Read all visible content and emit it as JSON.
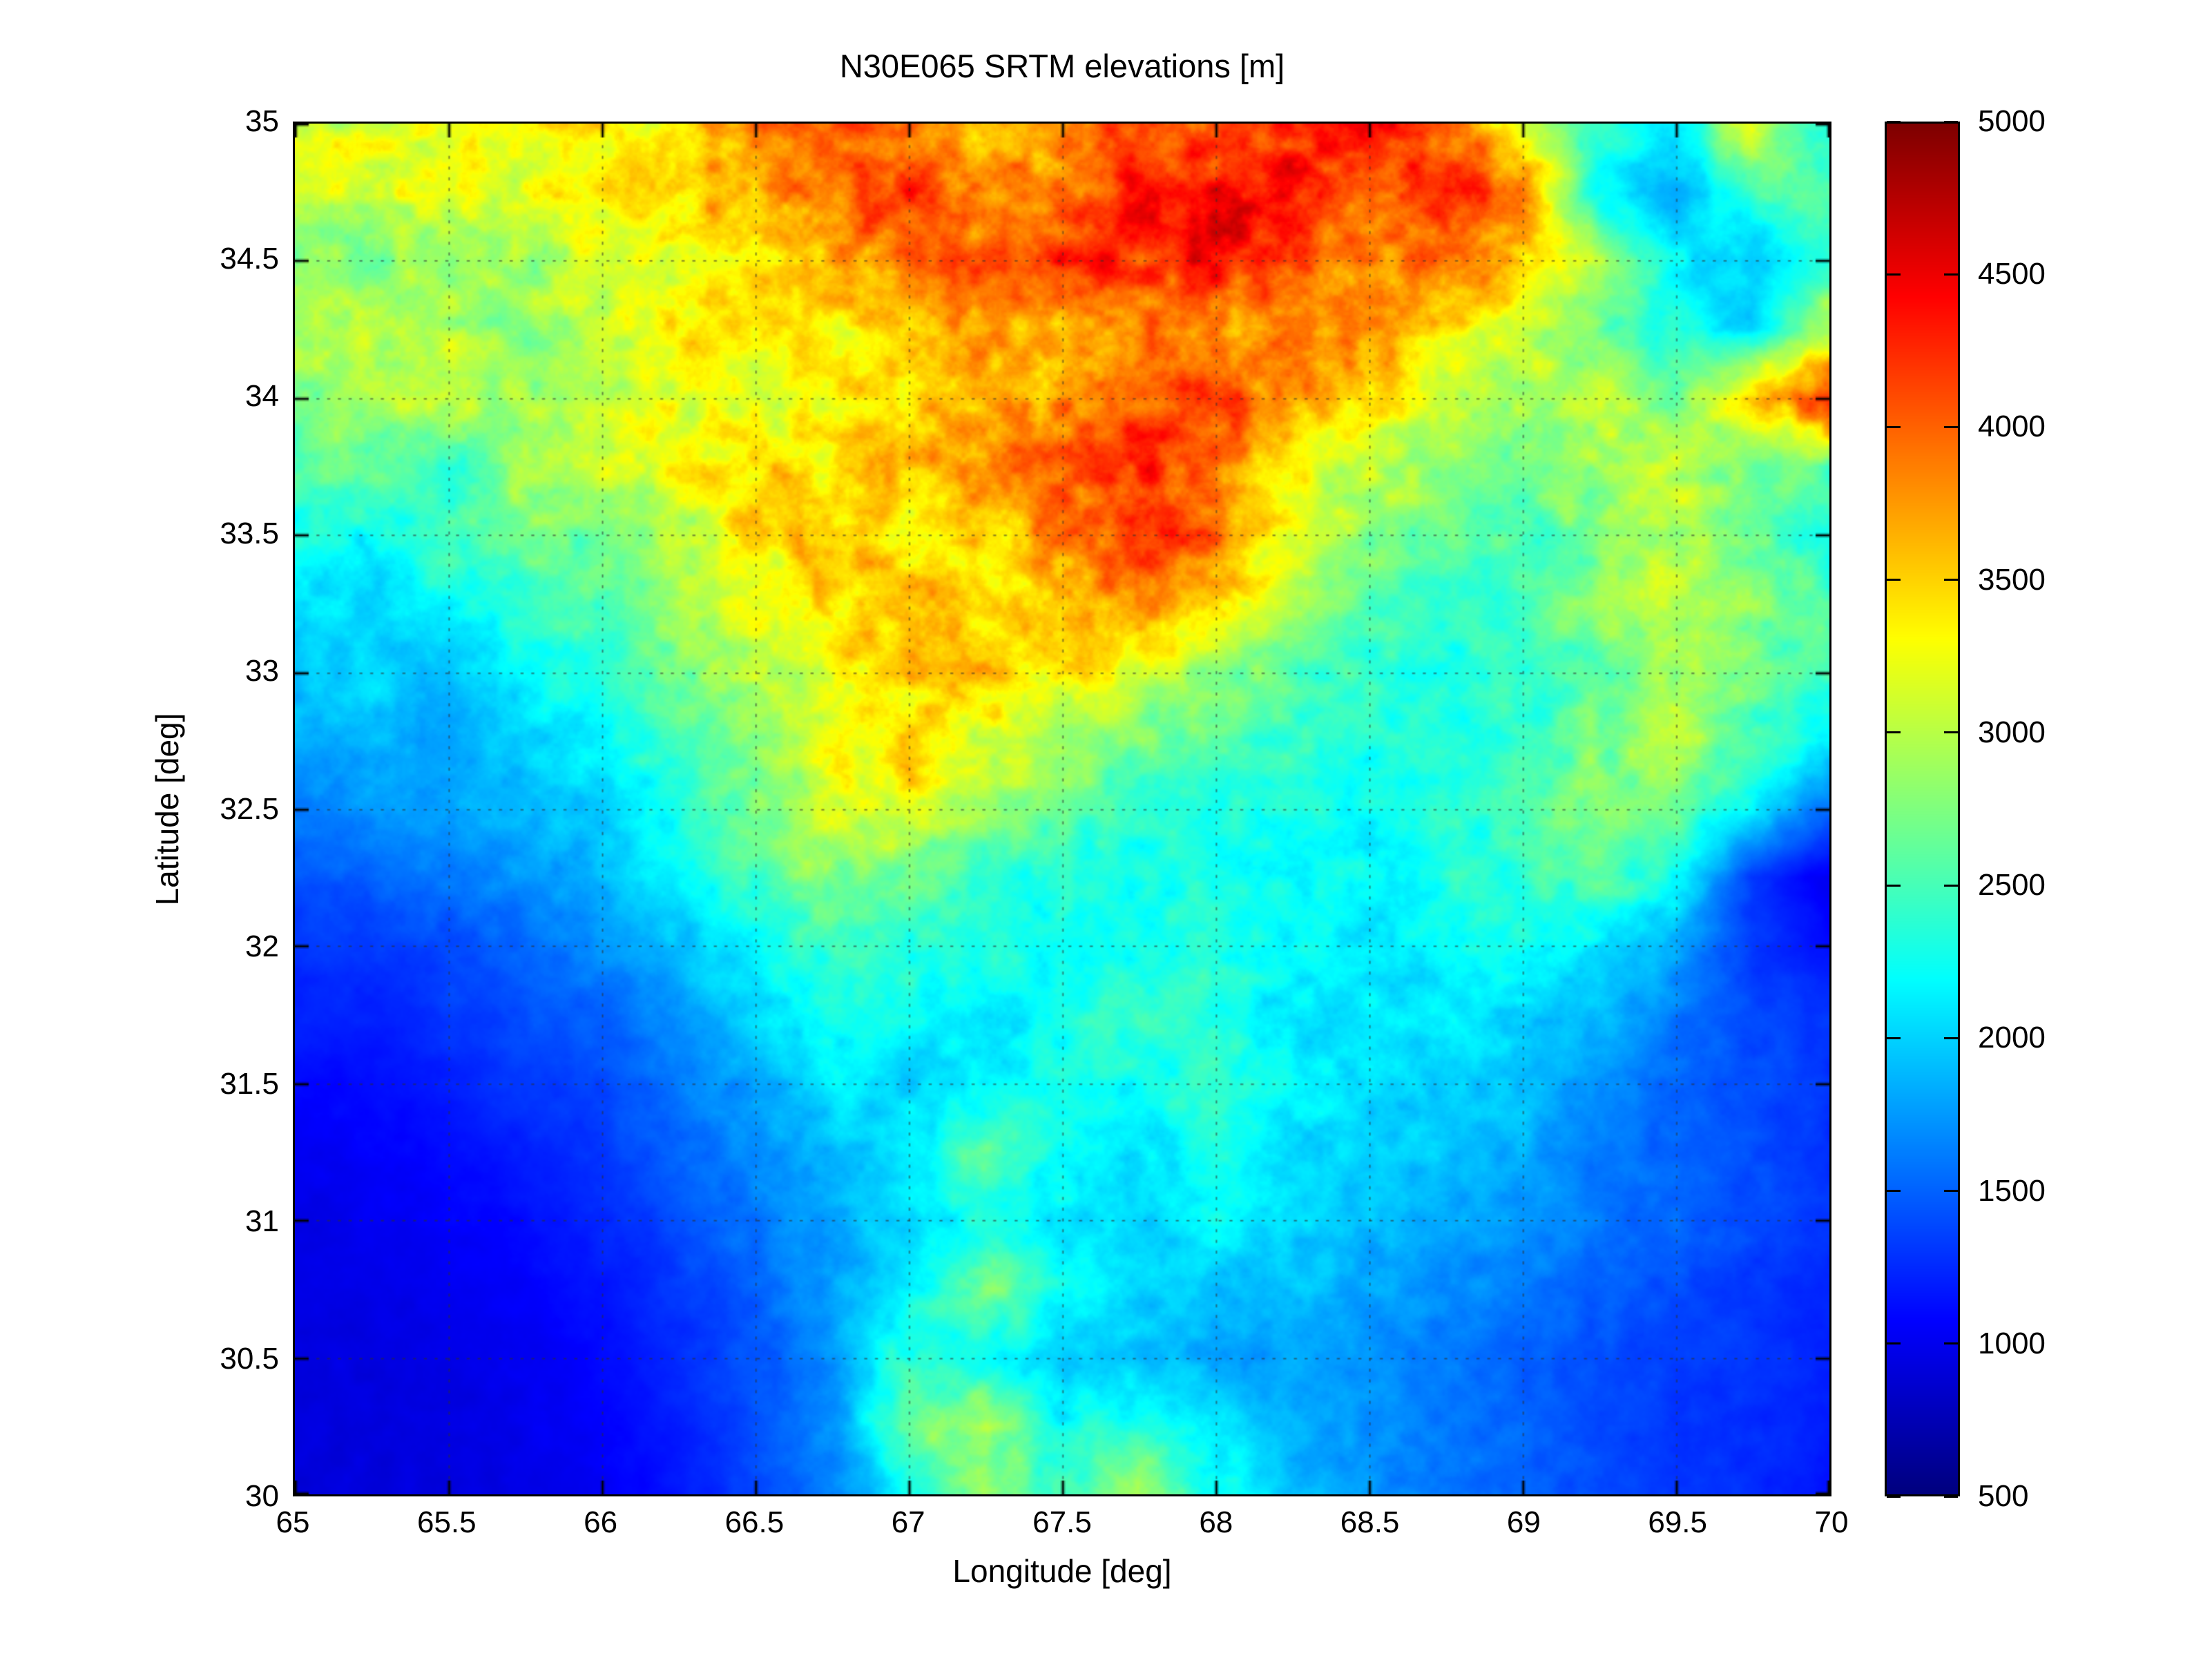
{
  "figure": {
    "title": "N30E065 SRTM elevations [m]"
  },
  "axes": {
    "xlabel": "Longitude [deg]",
    "ylabel": "Latitude [deg]",
    "x_tick_labels": [
      "65",
      "65.5",
      "66",
      "66.5",
      "67",
      "67.5",
      "68",
      "68.5",
      "69",
      "69.5",
      "70"
    ],
    "y_tick_labels": [
      "30",
      "30.5",
      "31",
      "31.5",
      "32",
      "32.5",
      "33",
      "33.5",
      "34",
      "34.5",
      "35"
    ],
    "grid_on": true
  },
  "colorbar": {
    "tick_labels": [
      "500",
      "1000",
      "1500",
      "2000",
      "2500",
      "3000",
      "3500",
      "4000",
      "4500",
      "5000"
    ],
    "min": 500,
    "max": 5000,
    "colormap": "jet"
  },
  "chart_data": {
    "type": "heatmap",
    "title": "N30E065 SRTM elevations [m]",
    "xlabel": "Longitude [deg]",
    "ylabel": "Latitude [deg]",
    "x_range": [
      65,
      70
    ],
    "y_range": [
      30,
      35
    ],
    "colormap": "jet",
    "clim": [
      500,
      5000
    ],
    "units": "m",
    "legend": "colorbar-right",
    "grid": {
      "lon": [
        65,
        65.25,
        65.5,
        65.75,
        66,
        66.25,
        66.5,
        66.75,
        67,
        67.25,
        67.5,
        67.75,
        68,
        68.25,
        68.5,
        68.75,
        69,
        69.25,
        69.5,
        69.75,
        70
      ],
      "lat_top_to_bottom": [
        35,
        34.75,
        34.5,
        34.25,
        34,
        33.75,
        33.5,
        33.25,
        33,
        32.75,
        32.5,
        32.25,
        32,
        31.75,
        31.5,
        31.25,
        31,
        30.75,
        30.5,
        30.25,
        30
      ],
      "elevations_m": [
        [
          3150,
          3200,
          3250,
          3300,
          3350,
          3500,
          3900,
          4200,
          3800,
          3600,
          3800,
          4100,
          3900,
          4300,
          4400,
          3900,
          3300,
          2400,
          2100,
          3200,
          2200
        ],
        [
          3100,
          3150,
          3200,
          3250,
          3300,
          3450,
          3700,
          4000,
          4200,
          3700,
          3900,
          4300,
          4500,
          4400,
          4000,
          4300,
          3800,
          2200,
          1800,
          2400,
          2600
        ],
        [
          2800,
          2750,
          2800,
          2900,
          3100,
          3300,
          3500,
          3700,
          3900,
          4100,
          4300,
          4200,
          4400,
          4100,
          3800,
          4000,
          3500,
          3000,
          2200,
          1900,
          2400
        ],
        [
          2900,
          3100,
          3000,
          2800,
          3100,
          3300,
          3400,
          3300,
          3500,
          3700,
          3600,
          3900,
          3700,
          3800,
          3900,
          3400,
          3100,
          2700,
          2300,
          2000,
          3000
        ],
        [
          2800,
          2900,
          3100,
          2900,
          3000,
          3200,
          3100,
          3300,
          3500,
          3600,
          3800,
          4000,
          4200,
          3700,
          3400,
          3100,
          2900,
          3100,
          2600,
          3600,
          4300
        ],
        [
          2500,
          2700,
          2400,
          2900,
          3100,
          3300,
          3500,
          3400,
          3600,
          3800,
          4000,
          4300,
          3900,
          3300,
          3000,
          2800,
          2700,
          2900,
          3100,
          2700,
          2500
        ],
        [
          2300,
          2200,
          2500,
          2700,
          2600,
          3000,
          3400,
          3600,
          3300,
          3500,
          3800,
          4300,
          4000,
          3200,
          2800,
          2600,
          2500,
          2700,
          3000,
          2600,
          2300
        ],
        [
          2100,
          2000,
          2200,
          2400,
          2600,
          2900,
          3200,
          3500,
          3700,
          3400,
          3600,
          3900,
          3500,
          2900,
          2500,
          2400,
          2500,
          2800,
          3000,
          2800,
          2500
        ],
        [
          1900,
          2000,
          1900,
          2200,
          2400,
          2700,
          3000,
          3300,
          3500,
          3700,
          3400,
          3100,
          2800,
          2600,
          2400,
          2300,
          2400,
          2600,
          2900,
          2700,
          2400
        ],
        [
          1800,
          1900,
          1800,
          2000,
          2200,
          2500,
          2900,
          3200,
          3400,
          3100,
          2900,
          2700,
          2500,
          2400,
          2300,
          2300,
          2400,
          2700,
          3000,
          2500,
          2200
        ],
        [
          1600,
          1700,
          1800,
          1900,
          2000,
          2300,
          2700,
          3100,
          3300,
          2900,
          2600,
          2400,
          2300,
          2300,
          2200,
          2300,
          2500,
          2800,
          2600,
          2100,
          1500
        ],
        [
          1400,
          1500,
          1600,
          1700,
          1900,
          2100,
          2500,
          2800,
          2600,
          2400,
          2300,
          2200,
          2300,
          2200,
          2200,
          2300,
          2400,
          2600,
          2200,
          1300,
          1000
        ],
        [
          1300,
          1300,
          1400,
          1500,
          1700,
          1900,
          2200,
          2500,
          2400,
          2300,
          2200,
          2300,
          2400,
          2200,
          2100,
          2200,
          2300,
          2100,
          1800,
          1300,
          1100
        ],
        [
          1200,
          1200,
          1300,
          1400,
          1500,
          1700,
          2000,
          2300,
          2200,
          2100,
          2200,
          2500,
          2300,
          2100,
          2100,
          2100,
          2000,
          1900,
          1600,
          1400,
          1300
        ],
        [
          1100,
          1100,
          1200,
          1300,
          1400,
          1600,
          1800,
          2100,
          2000,
          2100,
          2300,
          2200,
          2400,
          2200,
          2000,
          2000,
          1900,
          1700,
          1500,
          1400,
          1300
        ],
        [
          1000,
          1050,
          1100,
          1200,
          1300,
          1500,
          1700,
          1900,
          2100,
          2600,
          2200,
          2100,
          2300,
          2100,
          2000,
          1900,
          1800,
          1600,
          1500,
          1400,
          1300
        ],
        [
          950,
          1000,
          1050,
          1100,
          1250,
          1400,
          1600,
          1800,
          2000,
          2300,
          2100,
          2000,
          2200,
          2000,
          1900,
          1800,
          1700,
          1600,
          1500,
          1400,
          1300
        ],
        [
          930,
          950,
          1000,
          1050,
          1150,
          1300,
          1500,
          1800,
          2100,
          2800,
          2200,
          2000,
          1900,
          1900,
          1800,
          1700,
          1600,
          1500,
          1400,
          1300,
          1250
        ],
        [
          920,
          930,
          950,
          1000,
          1100,
          1250,
          1450,
          1700,
          2400,
          2200,
          2000,
          1900,
          1800,
          1800,
          1700,
          1600,
          1500,
          1400,
          1350,
          1300,
          1200
        ],
        [
          910,
          920,
          930,
          980,
          1050,
          1200,
          1400,
          1700,
          2600,
          3000,
          2200,
          2400,
          2100,
          1800,
          1700,
          1600,
          1500,
          1400,
          1300,
          1250,
          1200
        ],
        [
          900,
          910,
          920,
          960,
          1020,
          1150,
          1350,
          1600,
          2200,
          2800,
          2400,
          2900,
          2300,
          1900,
          1700,
          1600,
          1500,
          1400,
          1300,
          1250,
          1150
        ]
      ]
    }
  }
}
